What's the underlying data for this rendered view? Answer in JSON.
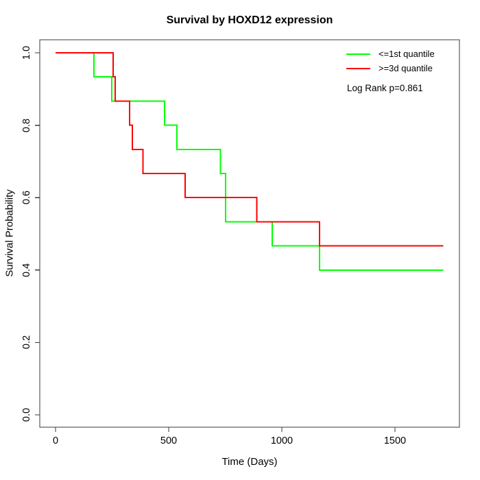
{
  "figure": {
    "title": "Survival by HOXD12 expression",
    "x_axis": {
      "label": "Time (Days)"
    },
    "y_axis": {
      "label": "Survival Probability"
    },
    "legend": {
      "items": [
        {
          "label": "<=1st quantile",
          "color": "#00FF00"
        },
        {
          "label": ">=3d quantile",
          "color": "#FF0000"
        }
      ],
      "annotation": "Log Rank p=0.861"
    }
  },
  "chart_data": {
    "type": "line",
    "subtype": "kaplan-meier-step",
    "title": "Survival by HOXD12 expression",
    "xlabel": "Time (Days)",
    "ylabel": "Survival Probability",
    "xlim": [
      0,
      1785
    ],
    "ylim": [
      0,
      1.0
    ],
    "x_ticks": [
      0,
      500,
      1000,
      1500
    ],
    "y_ticks": [
      0.0,
      0.2,
      0.4,
      0.6,
      0.8,
      1.0
    ],
    "grid": false,
    "legend_position": "top-right",
    "annotation": "Log Rank p=0.861",
    "series": [
      {
        "name": "<=1st quantile",
        "color": "#00FF00",
        "follow_up_end": 1714,
        "steps": [
          [
            0,
            1.0
          ],
          [
            170,
            0.9333
          ],
          [
            249,
            0.8667
          ],
          [
            482,
            0.8
          ],
          [
            537,
            0.7333
          ],
          [
            729,
            0.6667
          ],
          [
            752,
            0.5333
          ],
          [
            957,
            0.4667
          ],
          [
            1167,
            0.4
          ]
        ]
      },
      {
        "name": ">=3d quantile",
        "color": "#FF0000",
        "follow_up_end": 1714,
        "steps": [
          [
            0,
            1.0
          ],
          [
            254,
            0.9333
          ],
          [
            264,
            0.8667
          ],
          [
            328,
            0.8
          ],
          [
            340,
            0.7333
          ],
          [
            386,
            0.6667
          ],
          [
            573,
            0.6
          ],
          [
            889,
            0.5333
          ],
          [
            1167,
            0.4667
          ]
        ]
      }
    ]
  }
}
